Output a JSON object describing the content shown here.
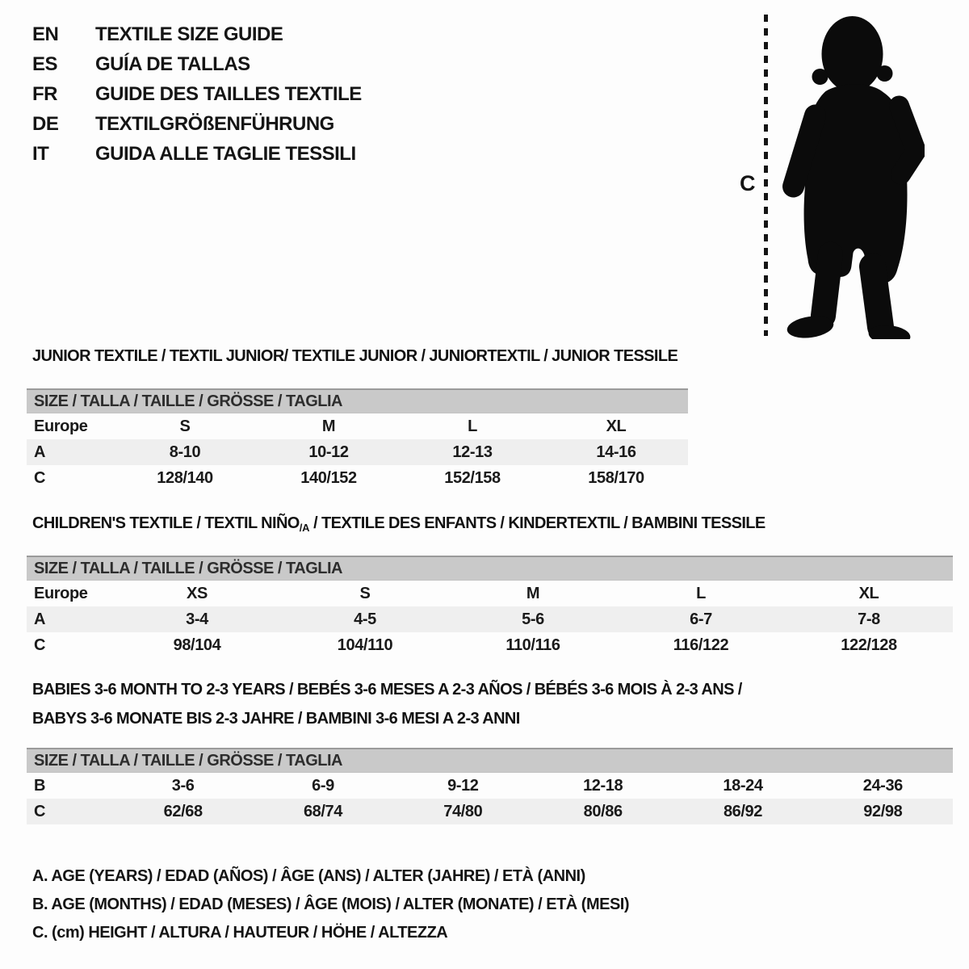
{
  "languages": [
    {
      "code": "EN",
      "label": "TEXTILE SIZE GUIDE"
    },
    {
      "code": "ES",
      "label": "GUÍA DE TALLAS"
    },
    {
      "code": "FR",
      "label": "GUIDE DES TAILLES TEXTILE"
    },
    {
      "code": "DE",
      "label": "TEXTILGRÖßENFÜHRUNG"
    },
    {
      "code": "IT",
      "label": "GUIDA ALLE TAGLIE TESSILI"
    }
  ],
  "figure": {
    "measure_label": "C",
    "image": "toddler-silhouette"
  },
  "sections": [
    {
      "id": "junior",
      "title": "JUNIOR TEXTILE / TEXTIL JUNIOR/ TEXTILE JUNIOR / JUNIORTEXTIL / JUNIOR TESSILE",
      "table": {
        "size_header": "SIZE / TALLA / TAILLE / GRÖSSE / TAGLIA",
        "rows": [
          {
            "label": "Europe",
            "values": [
              "S",
              "M",
              "L",
              "XL"
            ],
            "shaded": false
          },
          {
            "label": "A",
            "values": [
              "8-10",
              "10-12",
              "12-13",
              "14-16"
            ],
            "shaded": true
          },
          {
            "label": "C",
            "values": [
              "128/140",
              "140/152",
              "152/158",
              "158/170"
            ],
            "shaded": false
          }
        ]
      }
    },
    {
      "id": "children",
      "title_before": "CHILDREN'S TEXTILE / TEXTIL NIÑO",
      "title_sub": "/A",
      "title_after": " / TEXTILE DES ENFANTS / KINDERTEXTIL / BAMBINI TESSILE",
      "table": {
        "size_header": "SIZE / TALLA / TAILLE / GRÖSSE / TAGLIA",
        "rows": [
          {
            "label": "Europe",
            "values": [
              "XS",
              "S",
              "M",
              "L",
              "XL"
            ],
            "shaded": false
          },
          {
            "label": "A",
            "values": [
              "3-4",
              "4-5",
              "5-6",
              "6-7",
              "7-8"
            ],
            "shaded": true
          },
          {
            "label": "C",
            "values": [
              "98/104",
              "104/110",
              "110/116",
              "116/122",
              "122/128"
            ],
            "shaded": false
          }
        ]
      }
    },
    {
      "id": "babies",
      "title_line1": "BABIES 3-6 MONTH TO 2-3 YEARS / BEBÉS 3-6 MESES A 2-3 AÑOS / BÉBÉS 3-6 MOIS À 2-3 ANS /",
      "title_line2": "BABYS 3-6 MONATE BIS 2-3 JAHRE / BAMBINI 3-6 MESI A 2-3 ANNI",
      "table": {
        "size_header": "SIZE / TALLA / TAILLE / GRÖSSE / TAGLIA",
        "rows": [
          {
            "label": "B",
            "values": [
              "3-6",
              "6-9",
              "9-12",
              "12-18",
              "18-24",
              "24-36"
            ],
            "shaded": false
          },
          {
            "label": "C",
            "values": [
              "62/68",
              "68/74",
              "74/80",
              "80/86",
              "86/92",
              "92/98"
            ],
            "shaded": true
          }
        ]
      }
    }
  ],
  "legend": [
    "A. AGE (YEARS) / EDAD (AÑOS) / ÂGE (ANS) / ALTER (JAHRE) / ETÀ (ANNI)",
    "B. AGE (MONTHS) / EDAD (MESES) / ÂGE (MOIS) / ALTER (MONATE) / ETÀ (MESI)",
    "C. (cm) HEIGHT / ALTURA / HAUTEUR / HÖHE / ALTEZZA"
  ],
  "colors": {
    "header_bar": "#c9c9c9",
    "row_shaded": "#efefef",
    "silhouette": "#0b0b0b",
    "text": "#1c1c1c"
  }
}
